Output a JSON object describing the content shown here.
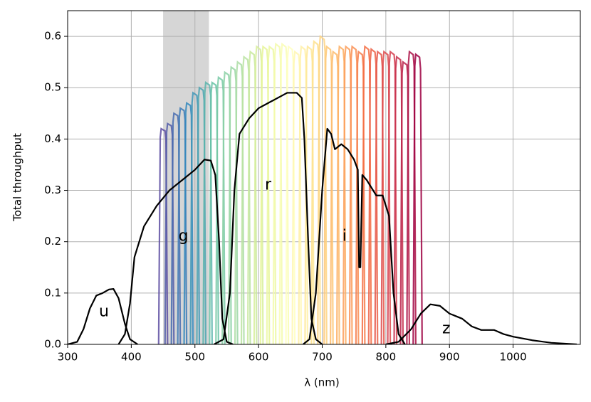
{
  "chart_data": {
    "type": "line",
    "xlabel": "λ (nm)",
    "ylabel": "Total throughput",
    "xlim": [
      300,
      1100
    ],
    "ylim": [
      0,
      0.65
    ],
    "xticks": [
      300,
      400,
      500,
      600,
      700,
      800,
      900,
      1000
    ],
    "yticks": [
      {
        "value": 0,
        "label": "0.0"
      },
      0.1,
      0.2,
      0.3,
      0.4,
      0.5,
      0.6
    ],
    "grid": true,
    "shade": [
      450,
      522
    ],
    "narrowband": {
      "colormap": [
        "#5e4fa2",
        "#3288bd",
        "#66c2a5",
        "#abdda4",
        "#e6f598",
        "#ffffbf",
        "#fee08b",
        "#fdae61",
        "#f46d43",
        "#d53e4f",
        "#9e0142"
      ],
      "centers": [
        450,
        460,
        470,
        480,
        490,
        500,
        510,
        520,
        530,
        540,
        550,
        560,
        570,
        580,
        590,
        600,
        610,
        620,
        630,
        640,
        650,
        660,
        670,
        680,
        690,
        700,
        710,
        720,
        730,
        740,
        750,
        760,
        770,
        780,
        790,
        800,
        810,
        820,
        830,
        840,
        850
      ],
      "peaks": [
        0.42,
        0.43,
        0.45,
        0.46,
        0.47,
        0.49,
        0.5,
        0.51,
        0.51,
        0.52,
        0.53,
        0.54,
        0.55,
        0.56,
        0.57,
        0.58,
        0.58,
        0.58,
        0.585,
        0.585,
        0.58,
        0.57,
        0.58,
        0.58,
        0.59,
        0.6,
        0.58,
        0.57,
        0.58,
        0.58,
        0.58,
        0.57,
        0.58,
        0.575,
        0.57,
        0.57,
        0.57,
        0.56,
        0.55,
        0.57,
        0.565
      ]
    },
    "series": [
      {
        "name": "u",
        "color": "#000000",
        "x": [
          300,
          315,
          325,
          335,
          345,
          355,
          365,
          372,
          380,
          390,
          398,
          410
        ],
        "values": [
          0,
          0.005,
          0.03,
          0.07,
          0.095,
          0.1,
          0.107,
          0.108,
          0.09,
          0.04,
          0.01,
          0
        ]
      },
      {
        "name": "g",
        "color": "#000000",
        "x": [
          380,
          390,
          398,
          405,
          420,
          440,
          460,
          480,
          500,
          515,
          525,
          532,
          538,
          543,
          550,
          560
        ],
        "values": [
          0,
          0.02,
          0.08,
          0.17,
          0.23,
          0.27,
          0.3,
          0.32,
          0.34,
          0.36,
          0.358,
          0.33,
          0.2,
          0.05,
          0.005,
          0
        ]
      },
      {
        "name": "r",
        "color": "#000000",
        "x": [
          530,
          545,
          555,
          562,
          570,
          585,
          600,
          615,
          630,
          645,
          660,
          668,
          672,
          678,
          683,
          690,
          700
        ],
        "values": [
          0,
          0.01,
          0.1,
          0.3,
          0.41,
          0.44,
          0.46,
          0.47,
          0.48,
          0.49,
          0.49,
          0.48,
          0.4,
          0.2,
          0.05,
          0.01,
          0
        ]
      },
      {
        "name": "i",
        "color": "#000000",
        "x": [
          670,
          680,
          690,
          700,
          708,
          714,
          720,
          730,
          740,
          750,
          756,
          758,
          760,
          763,
          770,
          785,
          795,
          805,
          812,
          820,
          830
        ],
        "values": [
          0,
          0.01,
          0.1,
          0.3,
          0.42,
          0.41,
          0.38,
          0.39,
          0.38,
          0.36,
          0.34,
          0.15,
          0.15,
          0.33,
          0.32,
          0.29,
          0.29,
          0.25,
          0.1,
          0.02,
          0
        ]
      },
      {
        "name": "z",
        "color": "#000000",
        "x": [
          800,
          820,
          840,
          855,
          870,
          885,
          900,
          910,
          920,
          935,
          950,
          970,
          985,
          1000,
          1030,
          1060,
          1100
        ],
        "values": [
          0,
          0.005,
          0.03,
          0.06,
          0.078,
          0.075,
          0.06,
          0.055,
          0.05,
          0.035,
          0.028,
          0.028,
          0.02,
          0.015,
          0.008,
          0.003,
          0
        ]
      }
    ]
  }
}
